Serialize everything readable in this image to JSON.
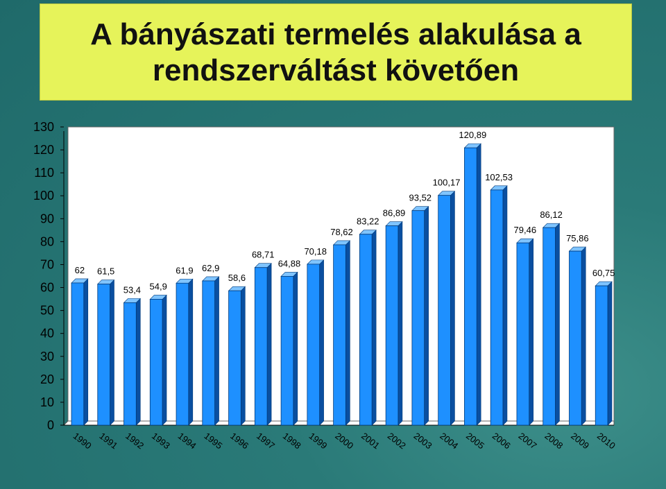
{
  "chart_data": {
    "type": "bar",
    "title": "A bányászati termelés alakulása a\nrendszerváltást követően",
    "categories": [
      "1990",
      "1991",
      "1992",
      "1993",
      "1994",
      "1995",
      "1996",
      "1997",
      "1998",
      "1999",
      "2000",
      "2001",
      "2002",
      "2003",
      "2004",
      "2005",
      "2006",
      "2007",
      "2008",
      "2009",
      "2010"
    ],
    "values": [
      62,
      61.5,
      53.4,
      54.9,
      61.9,
      62.9,
      58.6,
      68.71,
      64.88,
      70.18,
      78.62,
      83.22,
      86.89,
      93.52,
      100.17,
      120.89,
      102.53,
      79.46,
      86.12,
      75.86,
      60.75
    ],
    "data_labels": [
      "62",
      "61,5",
      "53,4",
      "54,9",
      "61,9",
      "62,9",
      "58,6",
      "68,71",
      "64,88",
      "70,18",
      "78,62",
      "83,22",
      "86,89",
      "93,52",
      "100,17",
      "120,89",
      "102,53",
      "79,46",
      "86,12",
      "75,86",
      "60,75"
    ],
    "yticks": [
      "0",
      "10",
      "20",
      "30",
      "40",
      "50",
      "60",
      "70",
      "80",
      "90",
      "100",
      "110",
      "120",
      "130"
    ],
    "ylim": [
      0,
      130
    ],
    "xlabel": "",
    "ylabel": "",
    "grid": false,
    "legend": "none",
    "colors": {
      "bar": "#1e90ff",
      "bar_top": "#7fc4ff",
      "bar_side": "#0a4fa0",
      "plot_bg": "#ffffff",
      "title_bg": "#e6f35a"
    }
  }
}
